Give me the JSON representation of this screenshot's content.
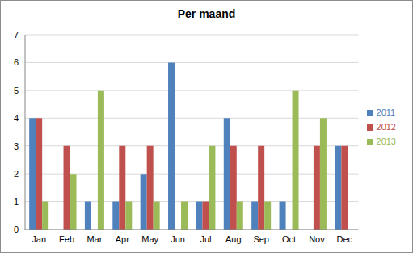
{
  "chart_data": {
    "type": "bar",
    "title": "Per maand",
    "categories": [
      "Jan",
      "Feb",
      "Mar",
      "Apr",
      "May",
      "Jun",
      "Jul",
      "Aug",
      "Sep",
      "Oct",
      "Nov",
      "Dec"
    ],
    "series": [
      {
        "name": "2011",
        "color": "#4f81bd",
        "values": [
          4,
          0,
          1,
          1,
          2,
          6,
          1,
          4,
          1,
          1,
          0,
          3
        ]
      },
      {
        "name": "2012",
        "color": "#c0504d",
        "values": [
          4,
          3,
          0,
          3,
          3,
          0,
          1,
          3,
          3,
          0,
          3,
          3
        ]
      },
      {
        "name": "2013",
        "color": "#9bbb59",
        "values": [
          1,
          2,
          5,
          1,
          1,
          1,
          3,
          1,
          1,
          5,
          4,
          0
        ]
      }
    ],
    "ylim": [
      0,
      7
    ],
    "yticks": [
      0,
      1,
      2,
      3,
      4,
      5,
      6,
      7
    ],
    "grid": true,
    "legend": "right"
  }
}
